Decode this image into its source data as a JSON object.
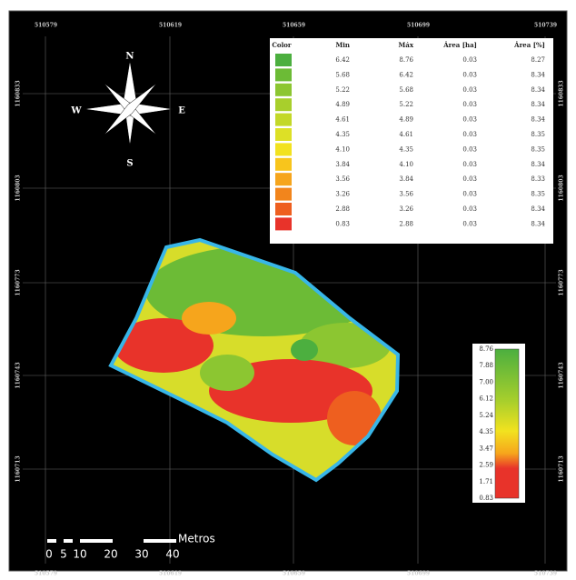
{
  "map": {
    "top_coords": [
      "510579",
      "510619",
      "510659",
      "510699",
      "510739"
    ],
    "left_coords": [
      "1160833",
      "1160803",
      "1160773",
      "1160743",
      "1160713"
    ],
    "compass": {
      "north": "N",
      "south": "S",
      "east": "E",
      "west": "W"
    },
    "scale_bar": {
      "labels": [
        "0",
        "5",
        "10",
        "20",
        "30",
        "40"
      ],
      "unit": "Metros"
    }
  },
  "table": {
    "headers": [
      "Color",
      "Min",
      "Máx",
      "Área [ha]",
      "Área [%]"
    ],
    "rows": [
      {
        "color": "#4caf3f",
        "min": "6.42",
        "max": "8.76",
        "area_ha": "0.03",
        "area_pct": "8.27"
      },
      {
        "color": "#6cbb36",
        "min": "5.68",
        "max": "6.42",
        "area_ha": "0.03",
        "area_pct": "8.34"
      },
      {
        "color": "#8cc631",
        "min": "5.22",
        "max": "5.68",
        "area_ha": "0.03",
        "area_pct": "8.34"
      },
      {
        "color": "#a8cf2c",
        "min": "4.89",
        "max": "5.22",
        "area_ha": "0.03",
        "area_pct": "8.34"
      },
      {
        "color": "#c3d828",
        "min": "4.61",
        "max": "4.89",
        "area_ha": "0.03",
        "area_pct": "8.34"
      },
      {
        "color": "#dde026",
        "min": "4.35",
        "max": "4.61",
        "area_ha": "0.03",
        "area_pct": "8.35"
      },
      {
        "color": "#f2e21f",
        "min": "4.10",
        "max": "4.35",
        "area_ha": "0.03",
        "area_pct": "8.35"
      },
      {
        "color": "#f8c51c",
        "min": "3.84",
        "max": "4.10",
        "area_ha": "0.03",
        "area_pct": "8.34"
      },
      {
        "color": "#f6a51c",
        "min": "3.56",
        "max": "3.84",
        "area_ha": "0.03",
        "area_pct": "8.33"
      },
      {
        "color": "#f2851c",
        "min": "3.26",
        "max": "3.56",
        "area_ha": "0.03",
        "area_pct": "8.35"
      },
      {
        "color": "#ee5f1f",
        "min": "2.88",
        "max": "3.26",
        "area_ha": "0.03",
        "area_pct": "8.34"
      },
      {
        "color": "#e8332a",
        "min": "0.83",
        "max": "2.88",
        "area_ha": "0.03",
        "area_pct": "8.34"
      }
    ]
  },
  "colorbar": {
    "labels": [
      "8.76",
      "7.88",
      "7.00",
      "6.12",
      "5.24",
      "4.35",
      "3.47",
      "2.59",
      "1.71",
      "0.83"
    ]
  }
}
